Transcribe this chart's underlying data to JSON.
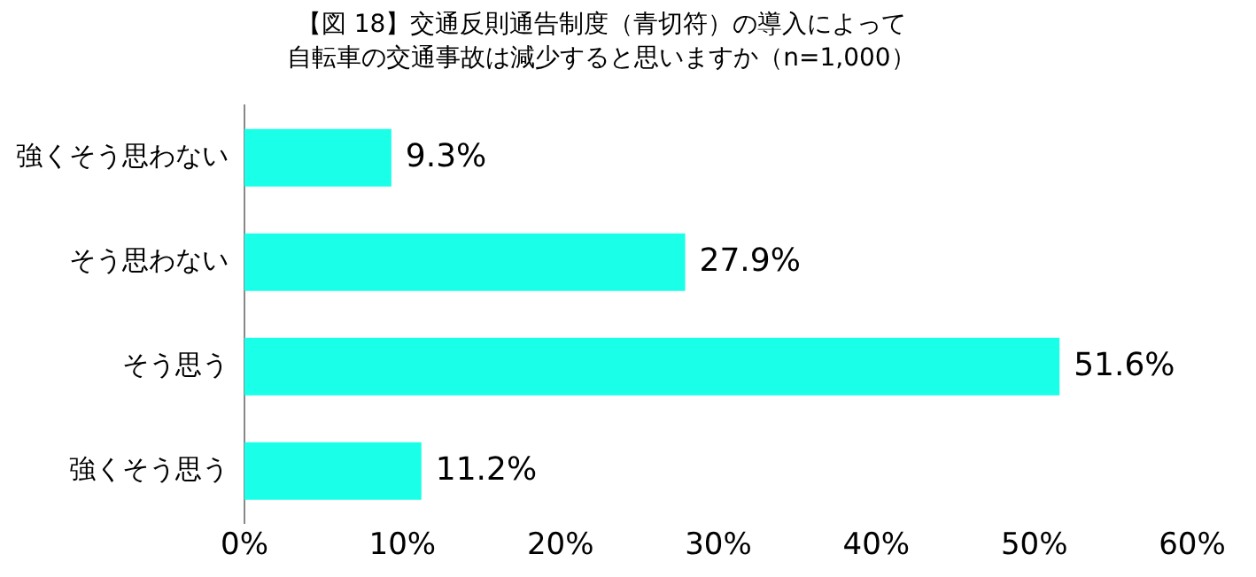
{
  "chart_data": {
    "type": "bar",
    "orientation": "horizontal",
    "title": "【図 18】交通反則通告制度（青切符）の導入によって",
    "subtitle": "自転車の交通事故は減少すると思いますか（n=1,000）",
    "categories": [
      "強くそう思わない",
      "そう思わない",
      "そう思う",
      "強くそう思う"
    ],
    "values": [
      9.3,
      27.9,
      51.6,
      11.2
    ],
    "value_labels": [
      "9.3%",
      "27.9%",
      "51.6%",
      "11.2%"
    ],
    "color": "#19ffe8",
    "xlim": [
      0,
      60
    ],
    "xticks": [
      {
        "value": 0,
        "label": "0%"
      },
      {
        "value": 10,
        "label": "10%"
      },
      {
        "value": 20,
        "label": "20%"
      },
      {
        "value": 30,
        "label": "30%"
      },
      {
        "value": 40,
        "label": "40%"
      },
      {
        "value": 50,
        "label": "50%"
      },
      {
        "value": 60,
        "label": "60%"
      }
    ],
    "grid": false,
    "legend": false
  }
}
